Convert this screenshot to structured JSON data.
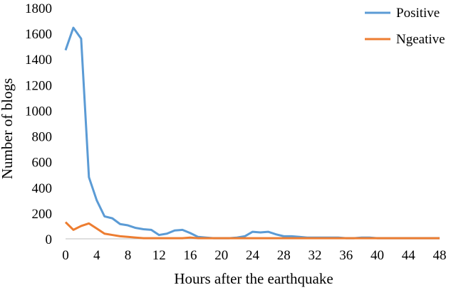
{
  "chart_data": {
    "type": "line",
    "xlabel": "Hours after the earthquake",
    "ylabel": "Number of blogs",
    "xlim": [
      0,
      48
    ],
    "ylim": [
      0,
      1800
    ],
    "xticks": [
      0,
      4,
      8,
      12,
      16,
      20,
      24,
      28,
      32,
      36,
      40,
      44,
      48
    ],
    "yticks": [
      0,
      200,
      400,
      600,
      800,
      1000,
      1200,
      1400,
      1600,
      1800
    ],
    "grid": false,
    "legend_position": "top-right",
    "series": [
      {
        "name": "Positive",
        "color": "#5B9BD5",
        "x": [
          0,
          1,
          2,
          3,
          4,
          5,
          6,
          7,
          8,
          9,
          10,
          11,
          12,
          13,
          14,
          15,
          16,
          17,
          18,
          19,
          20,
          21,
          22,
          23,
          24,
          25,
          26,
          27,
          28,
          29,
          30,
          31,
          32,
          33,
          34,
          35,
          36,
          37,
          38,
          39,
          40,
          41,
          42,
          43,
          44,
          45,
          46,
          47,
          48
        ],
        "values": [
          1470,
          1645,
          1560,
          480,
          300,
          175,
          160,
          115,
          105,
          85,
          75,
          70,
          30,
          40,
          65,
          70,
          45,
          15,
          10,
          5,
          5,
          5,
          10,
          20,
          55,
          50,
          55,
          35,
          20,
          20,
          15,
          10,
          10,
          10,
          10,
          10,
          5,
          5,
          10,
          10,
          5,
          5,
          5,
          5,
          5,
          5,
          5,
          5,
          5
        ]
      },
      {
        "name": "Ngeative",
        "color": "#ED7D31",
        "x": [
          0,
          1,
          2,
          3,
          4,
          5,
          6,
          7,
          8,
          9,
          10,
          11,
          12,
          13,
          14,
          15,
          16,
          17,
          18,
          19,
          20,
          21,
          22,
          23,
          24,
          25,
          26,
          27,
          28,
          29,
          30,
          31,
          32,
          33,
          34,
          35,
          36,
          37,
          38,
          39,
          40,
          41,
          42,
          43,
          44,
          45,
          46,
          47,
          48
        ],
        "values": [
          130,
          70,
          100,
          120,
          80,
          40,
          30,
          20,
          15,
          10,
          5,
          5,
          5,
          5,
          5,
          5,
          10,
          5,
          5,
          5,
          5,
          5,
          5,
          5,
          5,
          5,
          5,
          5,
          5,
          5,
          5,
          5,
          5,
          5,
          5,
          5,
          5,
          5,
          5,
          5,
          5,
          5,
          5,
          5,
          5,
          5,
          5,
          5,
          5
        ]
      }
    ]
  }
}
